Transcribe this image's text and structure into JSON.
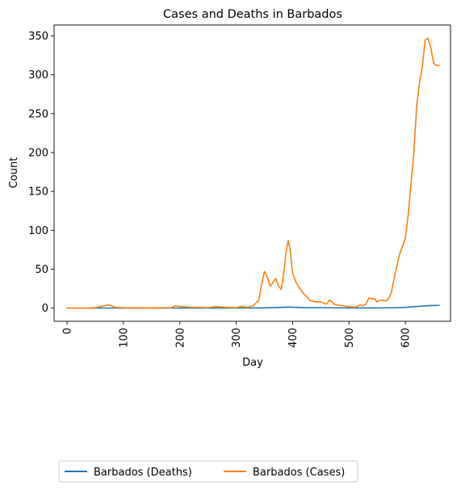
{
  "chart_data": {
    "type": "line",
    "title": "Cases and Deaths in Barbados",
    "xlabel": "Day",
    "ylabel": "Count",
    "xlim": [
      -23,
      680
    ],
    "ylim": [
      -17,
      364
    ],
    "xticks": [
      0,
      100,
      200,
      300,
      400,
      500,
      600
    ],
    "yticks": [
      0,
      50,
      100,
      150,
      200,
      250,
      300,
      350
    ],
    "grid": false,
    "legend_placement": "bottom, below chart",
    "series": [
      {
        "name": "Barbados (Deaths)",
        "color": "#1f77b4",
        "x": [
          0,
          100,
          200,
          300,
          340,
          360,
          380,
          395,
          410,
          420,
          450,
          500,
          550,
          580,
          600,
          610,
          620,
          630,
          640,
          650,
          660
        ],
        "y": [
          0,
          0,
          0,
          0,
          0.2,
          0.5,
          1,
          1.2,
          0.8,
          0.4,
          0.4,
          0.2,
          0.2,
          0.4,
          0.8,
          1.5,
          2,
          2.6,
          3,
          3.3,
          3.5
        ]
      },
      {
        "name": "Barbados (Cases)",
        "color": "#ff7f0e",
        "x": [
          0,
          40,
          55,
          65,
          75,
          85,
          100,
          150,
          185,
          192,
          200,
          220,
          250,
          265,
          280,
          300,
          310,
          320,
          330,
          340,
          345,
          350,
          355,
          360,
          365,
          370,
          375,
          380,
          385,
          388,
          392,
          395,
          400,
          405,
          410,
          420,
          425,
          430,
          440,
          450,
          460,
          465,
          470,
          475,
          480,
          490,
          500,
          510,
          520,
          525,
          530,
          535,
          540,
          545,
          550,
          555,
          560,
          565,
          570,
          575,
          580,
          585,
          590,
          595,
          600,
          605,
          610,
          615,
          620,
          625,
          630,
          635,
          640,
          645,
          650,
          655,
          660
        ],
        "y": [
          0,
          0,
          1,
          3,
          4,
          1,
          0.5,
          0.2,
          0.5,
          3,
          2,
          1,
          0.5,
          2,
          1,
          0.5,
          2,
          1,
          3,
          10,
          30,
          47,
          40,
          28,
          33,
          38,
          28,
          24,
          50,
          70,
          87,
          78,
          45,
          35,
          28,
          18,
          15,
          10,
          8,
          8,
          5,
          10,
          8,
          4,
          4,
          3,
          2,
          1,
          4,
          3,
          5,
          13,
          12,
          12,
          8,
          10,
          10,
          9,
          12,
          20,
          38,
          55,
          70,
          80,
          90,
          120,
          160,
          200,
          260,
          290,
          310,
          345,
          347,
          335,
          315,
          312,
          312
        ]
      }
    ]
  }
}
